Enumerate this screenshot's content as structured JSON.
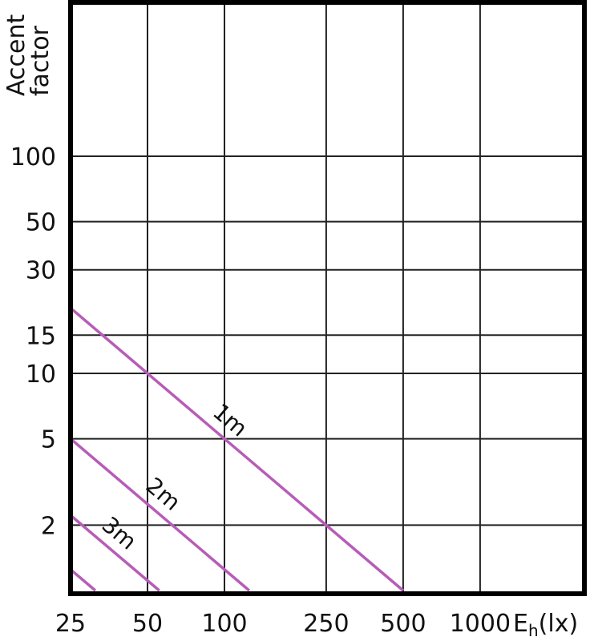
{
  "chart_data": {
    "type": "line",
    "title": "",
    "xlabel": "E",
    "xlabel_sub": "h",
    "xlabel_unit": "(lx)",
    "ylabel_lines": [
      "Accent",
      "factor"
    ],
    "x_scale": "log",
    "y_scale": "log",
    "xlim": [
      25,
      2600
    ],
    "ylim": [
      1,
      525
    ],
    "grid": true,
    "x_ticks": [
      25,
      50,
      100,
      250,
      500,
      1000
    ],
    "x_tick_labels": [
      "25",
      "50",
      "100",
      "250",
      "500",
      "1000"
    ],
    "y_ticks": [
      2,
      5,
      10,
      15,
      30,
      50,
      100
    ],
    "y_tick_labels": [
      "2",
      "5",
      "10",
      "15",
      "30",
      "50",
      "100"
    ],
    "line_color": "#b85cb8",
    "series": [
      {
        "name": "1m",
        "x": [
          25,
          500
        ],
        "values": [
          20,
          1
        ],
        "label_at_x": 95
      },
      {
        "name": "2m",
        "x": [
          25,
          125
        ],
        "values": [
          5,
          1
        ],
        "label_at_x": 52
      },
      {
        "name": "3m",
        "x": [
          25,
          55.6
        ],
        "values": [
          2.22,
          1
        ],
        "label_at_x": 35
      },
      {
        "name": "",
        "x": [
          25,
          31.25
        ],
        "values": [
          1.25,
          1
        ]
      }
    ]
  }
}
